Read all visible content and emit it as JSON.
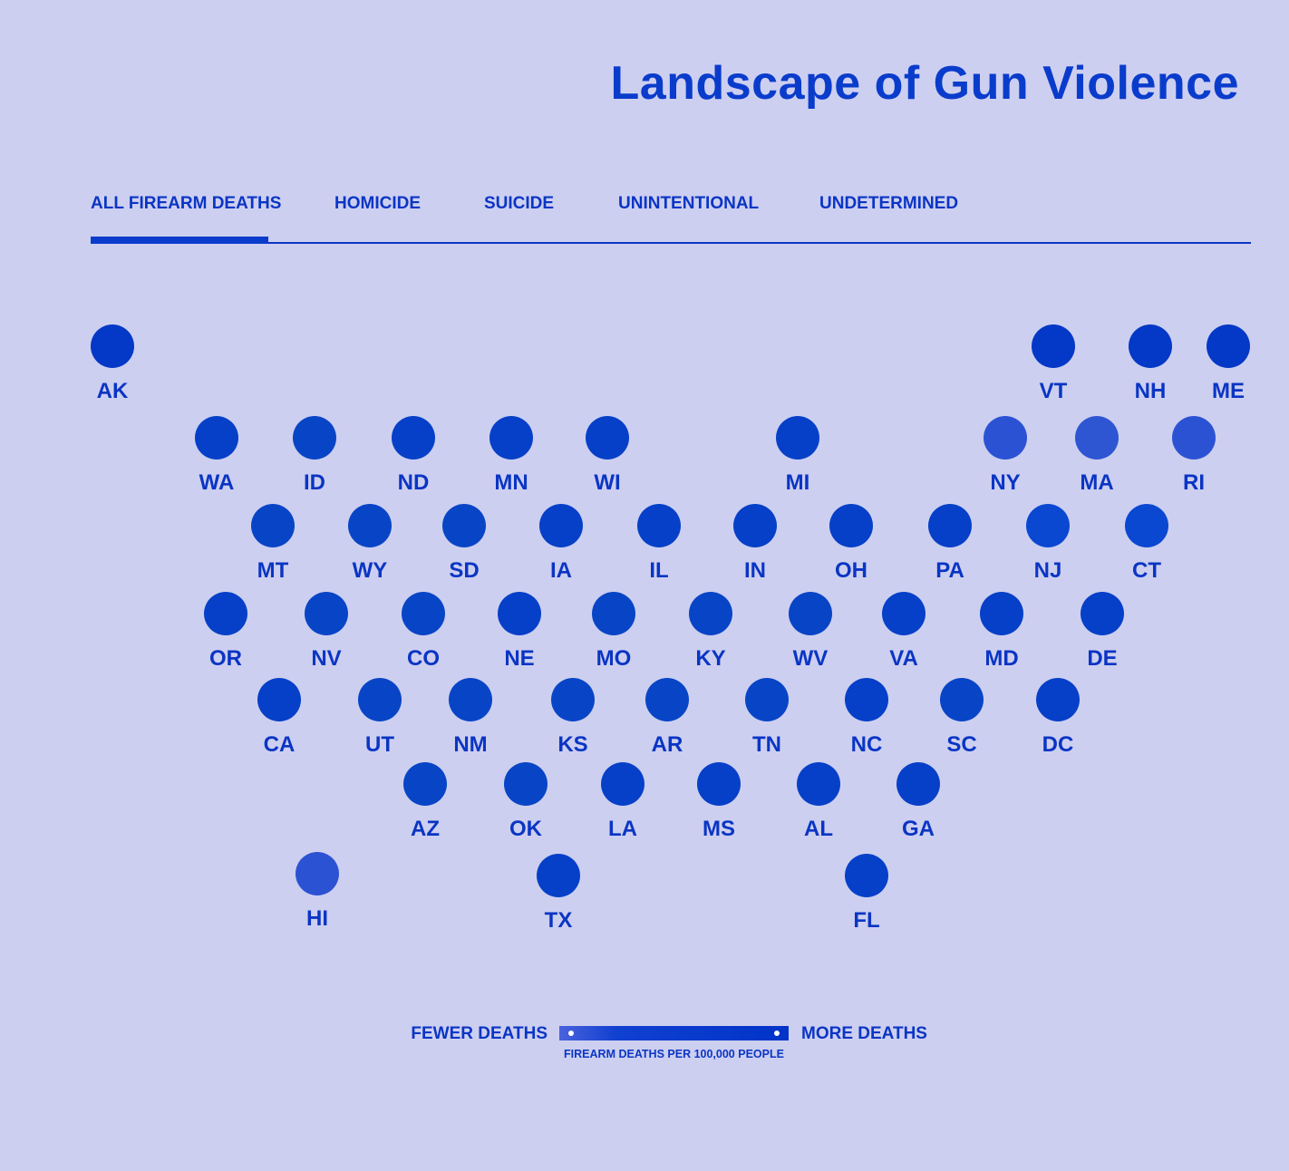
{
  "title": "Landscape of Gun Violence",
  "tabs": [
    {
      "label": "ALL FIREARM DEATHS",
      "active": true
    },
    {
      "label": "HOMICIDE",
      "active": false
    },
    {
      "label": "SUICIDE",
      "active": false
    },
    {
      "label": "UNINTENTIONAL",
      "active": false
    },
    {
      "label": "UNDETERMINED",
      "active": false
    }
  ],
  "colors": {
    "background": "#cdcff0",
    "accent": "#0a3ccc",
    "dot_default": "#0438c6",
    "dot_light": "#2c52d4"
  },
  "states": [
    {
      "code": "AK",
      "color": "#0438c6"
    },
    {
      "code": "VT",
      "color": "#0438c6"
    },
    {
      "code": "NH",
      "color": "#0438c6"
    },
    {
      "code": "ME",
      "color": "#0438c6"
    },
    {
      "code": "WA",
      "color": "#0640c8"
    },
    {
      "code": "ID",
      "color": "#0845c6"
    },
    {
      "code": "ND",
      "color": "#0640c8"
    },
    {
      "code": "MN",
      "color": "#0640c8"
    },
    {
      "code": "WI",
      "color": "#0640c8"
    },
    {
      "code": "MI",
      "color": "#0640c8"
    },
    {
      "code": "NY",
      "color": "#2c52d4"
    },
    {
      "code": "MA",
      "color": "#2e56d2"
    },
    {
      "code": "RI",
      "color": "#2c52d4"
    },
    {
      "code": "MT",
      "color": "#0845c6"
    },
    {
      "code": "WY",
      "color": "#0845c6"
    },
    {
      "code": "SD",
      "color": "#0845c6"
    },
    {
      "code": "IA",
      "color": "#0640c8"
    },
    {
      "code": "IL",
      "color": "#0640c8"
    },
    {
      "code": "IN",
      "color": "#0640c8"
    },
    {
      "code": "OH",
      "color": "#0640c8"
    },
    {
      "code": "PA",
      "color": "#0640c8"
    },
    {
      "code": "NJ",
      "color": "#0a48d2"
    },
    {
      "code": "CT",
      "color": "#0a48d2"
    },
    {
      "code": "OR",
      "color": "#0640c8"
    },
    {
      "code": "NV",
      "color": "#0845c6"
    },
    {
      "code": "CO",
      "color": "#0845c6"
    },
    {
      "code": "NE",
      "color": "#0640c8"
    },
    {
      "code": "MO",
      "color": "#0845c6"
    },
    {
      "code": "KY",
      "color": "#0845c6"
    },
    {
      "code": "WV",
      "color": "#0845c6"
    },
    {
      "code": "VA",
      "color": "#0640c8"
    },
    {
      "code": "MD",
      "color": "#0640c8"
    },
    {
      "code": "DE",
      "color": "#0640c8"
    },
    {
      "code": "CA",
      "color": "#0640c8"
    },
    {
      "code": "UT",
      "color": "#0845c6"
    },
    {
      "code": "NM",
      "color": "#0845c6"
    },
    {
      "code": "KS",
      "color": "#0845c6"
    },
    {
      "code": "AR",
      "color": "#0845c6"
    },
    {
      "code": "TN",
      "color": "#0845c6"
    },
    {
      "code": "NC",
      "color": "#0640c8"
    },
    {
      "code": "SC",
      "color": "#0845c6"
    },
    {
      "code": "DC",
      "color": "#0640c8"
    },
    {
      "code": "AZ",
      "color": "#0845c6"
    },
    {
      "code": "OK",
      "color": "#0845c6"
    },
    {
      "code": "LA",
      "color": "#0640c8"
    },
    {
      "code": "MS",
      "color": "#0640c8"
    },
    {
      "code": "AL",
      "color": "#0640c8"
    },
    {
      "code": "GA",
      "color": "#0640c8"
    },
    {
      "code": "HI",
      "color": "#2c52d4"
    },
    {
      "code": "TX",
      "color": "#0640c8"
    },
    {
      "code": "FL",
      "color": "#0640c8"
    }
  ],
  "legend": {
    "low_label": "FEWER DEATHS",
    "high_label": "MORE DEATHS",
    "caption": "FIREARM DEATHS PER 100,000 PEOPLE",
    "gradient_start": "#4a62dc",
    "gradient_end": "#0033c8"
  }
}
